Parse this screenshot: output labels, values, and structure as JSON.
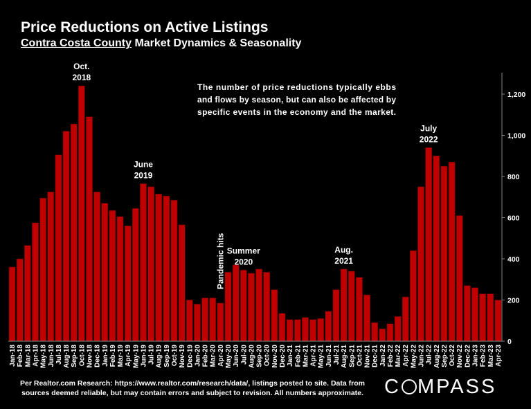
{
  "header": {
    "title": "Price Reductions on Active Listings",
    "subtitle_underlined": "Contra Costa County",
    "subtitle_rest": " Market Dynamics & Seasonality"
  },
  "chart_data": {
    "type": "bar",
    "color": "#c00000",
    "ylim": [
      0,
      1300
    ],
    "yticks": [
      0,
      200,
      400,
      600,
      800,
      1000,
      1200
    ],
    "ytick_labels": [
      "0",
      "200",
      "400",
      "600",
      "800",
      "1,000",
      "1,200"
    ],
    "axis_side": "right",
    "grid": false,
    "categories": [
      "Jan-18",
      "Feb-18",
      "Mar-18",
      "Apr-18",
      "May-18",
      "Jun-18",
      "Jul-18",
      "Aug-18",
      "Sep-18",
      "Oct-18",
      "Nov-18",
      "Dec-18",
      "Jan-19",
      "Feb-19",
      "Mar-19",
      "Apr-19",
      "May-19",
      "Jun-19",
      "Jul-19",
      "Aug-19",
      "Sep-19",
      "Oct-19",
      "Nov-19",
      "Dec-19",
      "Jan-20",
      "Feb-20",
      "Mar-20",
      "Apr-20",
      "May-20",
      "Jun-20",
      "Jul-20",
      "Aug-20",
      "Sep-20",
      "Oct-20",
      "Nov-20",
      "Dec-20",
      "Jan-21",
      "Feb-21",
      "Mar-21",
      "Apr-21",
      "May-21",
      "Jun-21",
      "Jul-21",
      "Aug-21",
      "Sep-21",
      "Oct-21",
      "Nov-21",
      "Dec-21",
      "Jan-22",
      "Feb-22",
      "Mar-22",
      "Apr-22",
      "May-22",
      "Jun-22",
      "Jul-22",
      "Aug-22",
      "Sep-22",
      "Oct-22",
      "Nov-22",
      "Dec-22",
      "Jan-23",
      "Feb-23",
      "Mar-23",
      "Apr-23"
    ],
    "values": [
      360,
      400,
      465,
      575,
      695,
      725,
      905,
      1020,
      1055,
      1240,
      1090,
      725,
      670,
      635,
      605,
      560,
      645,
      765,
      750,
      715,
      705,
      685,
      565,
      200,
      180,
      210,
      210,
      185,
      335,
      370,
      345,
      330,
      350,
      335,
      250,
      135,
      105,
      105,
      115,
      105,
      110,
      145,
      250,
      350,
      340,
      310,
      225,
      90,
      60,
      85,
      120,
      215,
      440,
      750,
      940,
      900,
      850,
      870,
      610,
      270,
      260,
      230,
      230,
      200
    ],
    "annotations": [
      {
        "lines": [
          "Oct.",
          "2018"
        ],
        "category": "Oct-18"
      },
      {
        "lines": [
          "June",
          "2019"
        ],
        "category": "Jun-19"
      },
      {
        "lines": [
          "Summer",
          "2020"
        ],
        "category": "Jul-20"
      },
      {
        "lines": [
          "Aug.",
          "2021"
        ],
        "category": "Aug-21"
      },
      {
        "lines": [
          "July",
          "2022"
        ],
        "category": "Jul-22"
      },
      {
        "lines": [
          "Pandemic hits"
        ],
        "category": "Apr-20",
        "rotated": true
      }
    ],
    "note_lines": [
      "The number of price reductions typically ebbs",
      "and flows by season, but can also be affected by",
      "specific events in the economy and the market."
    ]
  },
  "footer": {
    "line1": "Per Realtor.com Research:  https://www.realtor.com/research/data/, listings posted to site. Data from",
    "line2": "sources deemed reliable, but may contain errors and subject to revision. All numbers approximate."
  },
  "logo": {
    "pre": "C",
    "post": "MPASS"
  }
}
